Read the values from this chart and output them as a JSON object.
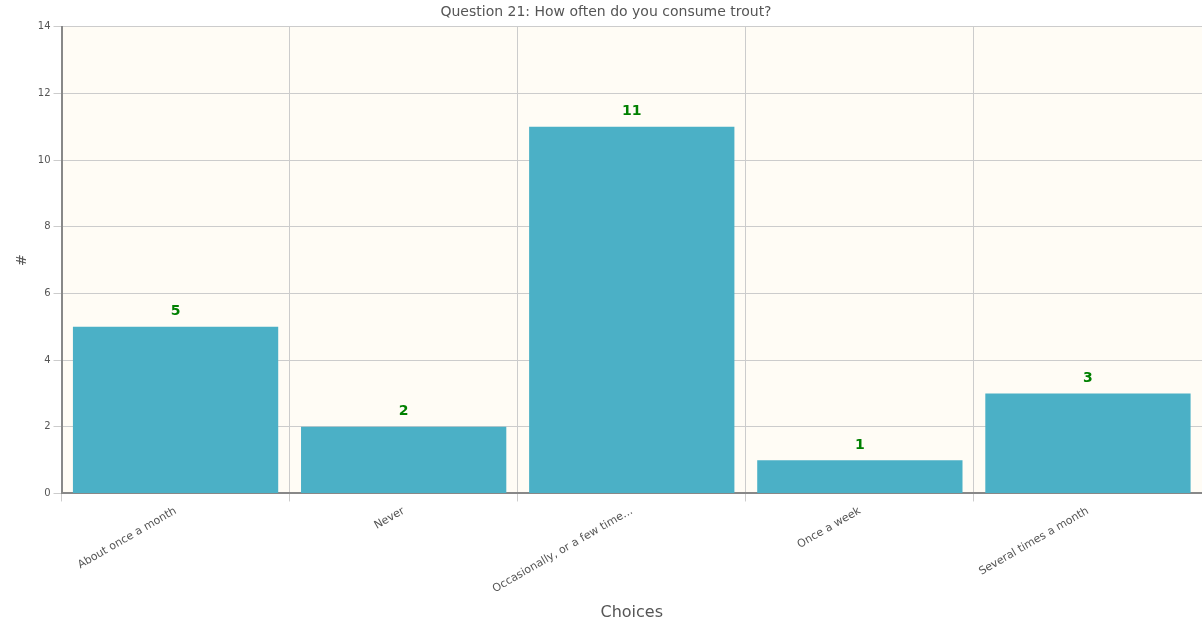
{
  "chart_data": {
    "type": "bar",
    "title": "Question 21: How often do you consume trout?",
    "xlabel": "Choices",
    "ylabel": "#",
    "categories": [
      "About once a month",
      "Never",
      "Occasionally, or a few time...",
      "Once a week",
      "Several times a month"
    ],
    "values": [
      5,
      2,
      11,
      1,
      3
    ],
    "color": "#4bb0c6",
    "ylim": [
      0,
      14
    ],
    "yticks": [
      0,
      2,
      4,
      6,
      8,
      10,
      12,
      14
    ],
    "grid": true,
    "data_labels": true
  }
}
